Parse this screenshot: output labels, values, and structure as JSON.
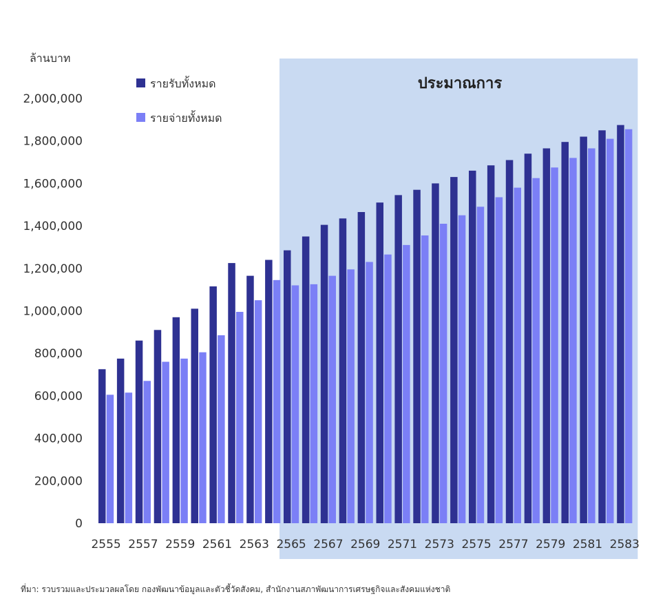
{
  "chart_data": {
    "type": "bar",
    "ylabel": "ล้านบาท",
    "ylim": [
      0,
      2000000
    ],
    "yticks": [
      "0",
      "200,000",
      "400,000",
      "600,000",
      "800,000",
      "1,000,000",
      "1,200,000",
      "1,400,000",
      "1,600,000",
      "1,800,000",
      "2,000,000"
    ],
    "categories": [
      2555,
      2556,
      2557,
      2558,
      2559,
      2560,
      2561,
      2562,
      2563,
      2564,
      2565,
      2566,
      2567,
      2568,
      2569,
      2570,
      2571,
      2572,
      2573,
      2574,
      2575,
      2576,
      2577,
      2578,
      2579,
      2580,
      2581,
      2582,
      2583
    ],
    "xtick_labels": [
      "2555",
      "2557",
      "2559",
      "2561",
      "2563",
      "2565",
      "2567",
      "2569",
      "2571",
      "2573",
      "2575",
      "2577",
      "2579",
      "2581",
      "2583"
    ],
    "series": [
      {
        "name": "รายรับทั้งหมด",
        "color": "#2e3192",
        "values": [
          725000,
          775000,
          860000,
          910000,
          970000,
          1010000,
          1115000,
          1225000,
          1165000,
          1240000,
          1285000,
          1350000,
          1405000,
          1435000,
          1465000,
          1510000,
          1545000,
          1570000,
          1600000,
          1630000,
          1660000,
          1685000,
          1710000,
          1740000,
          1765000,
          1795000,
          1820000,
          1850000,
          1875000
        ]
      },
      {
        "name": "รายจ่ายทั้งหมด",
        "color": "#7b7ff6",
        "values": [
          605000,
          615000,
          670000,
          760000,
          775000,
          805000,
          885000,
          995000,
          1050000,
          1145000,
          1120000,
          1125000,
          1165000,
          1195000,
          1230000,
          1265000,
          1310000,
          1355000,
          1410000,
          1450000,
          1490000,
          1535000,
          1580000,
          1625000,
          1675000,
          1720000,
          1765000,
          1810000,
          1855000
        ]
      }
    ],
    "forecast_region": {
      "label": "ประมาณการ",
      "from": 2565,
      "to": 2583,
      "color": "#c9daf2"
    },
    "legend_position": "top-left",
    "grid": false
  },
  "source_note": "ที่มา: รวบรวมและประมวลผลโดย กองพัฒนาข้อมูลและตัวชี้วัดสังคม, สำนักงานสภาพัฒนาการเศรษฐกิจและสังคมแห่งชาติ"
}
